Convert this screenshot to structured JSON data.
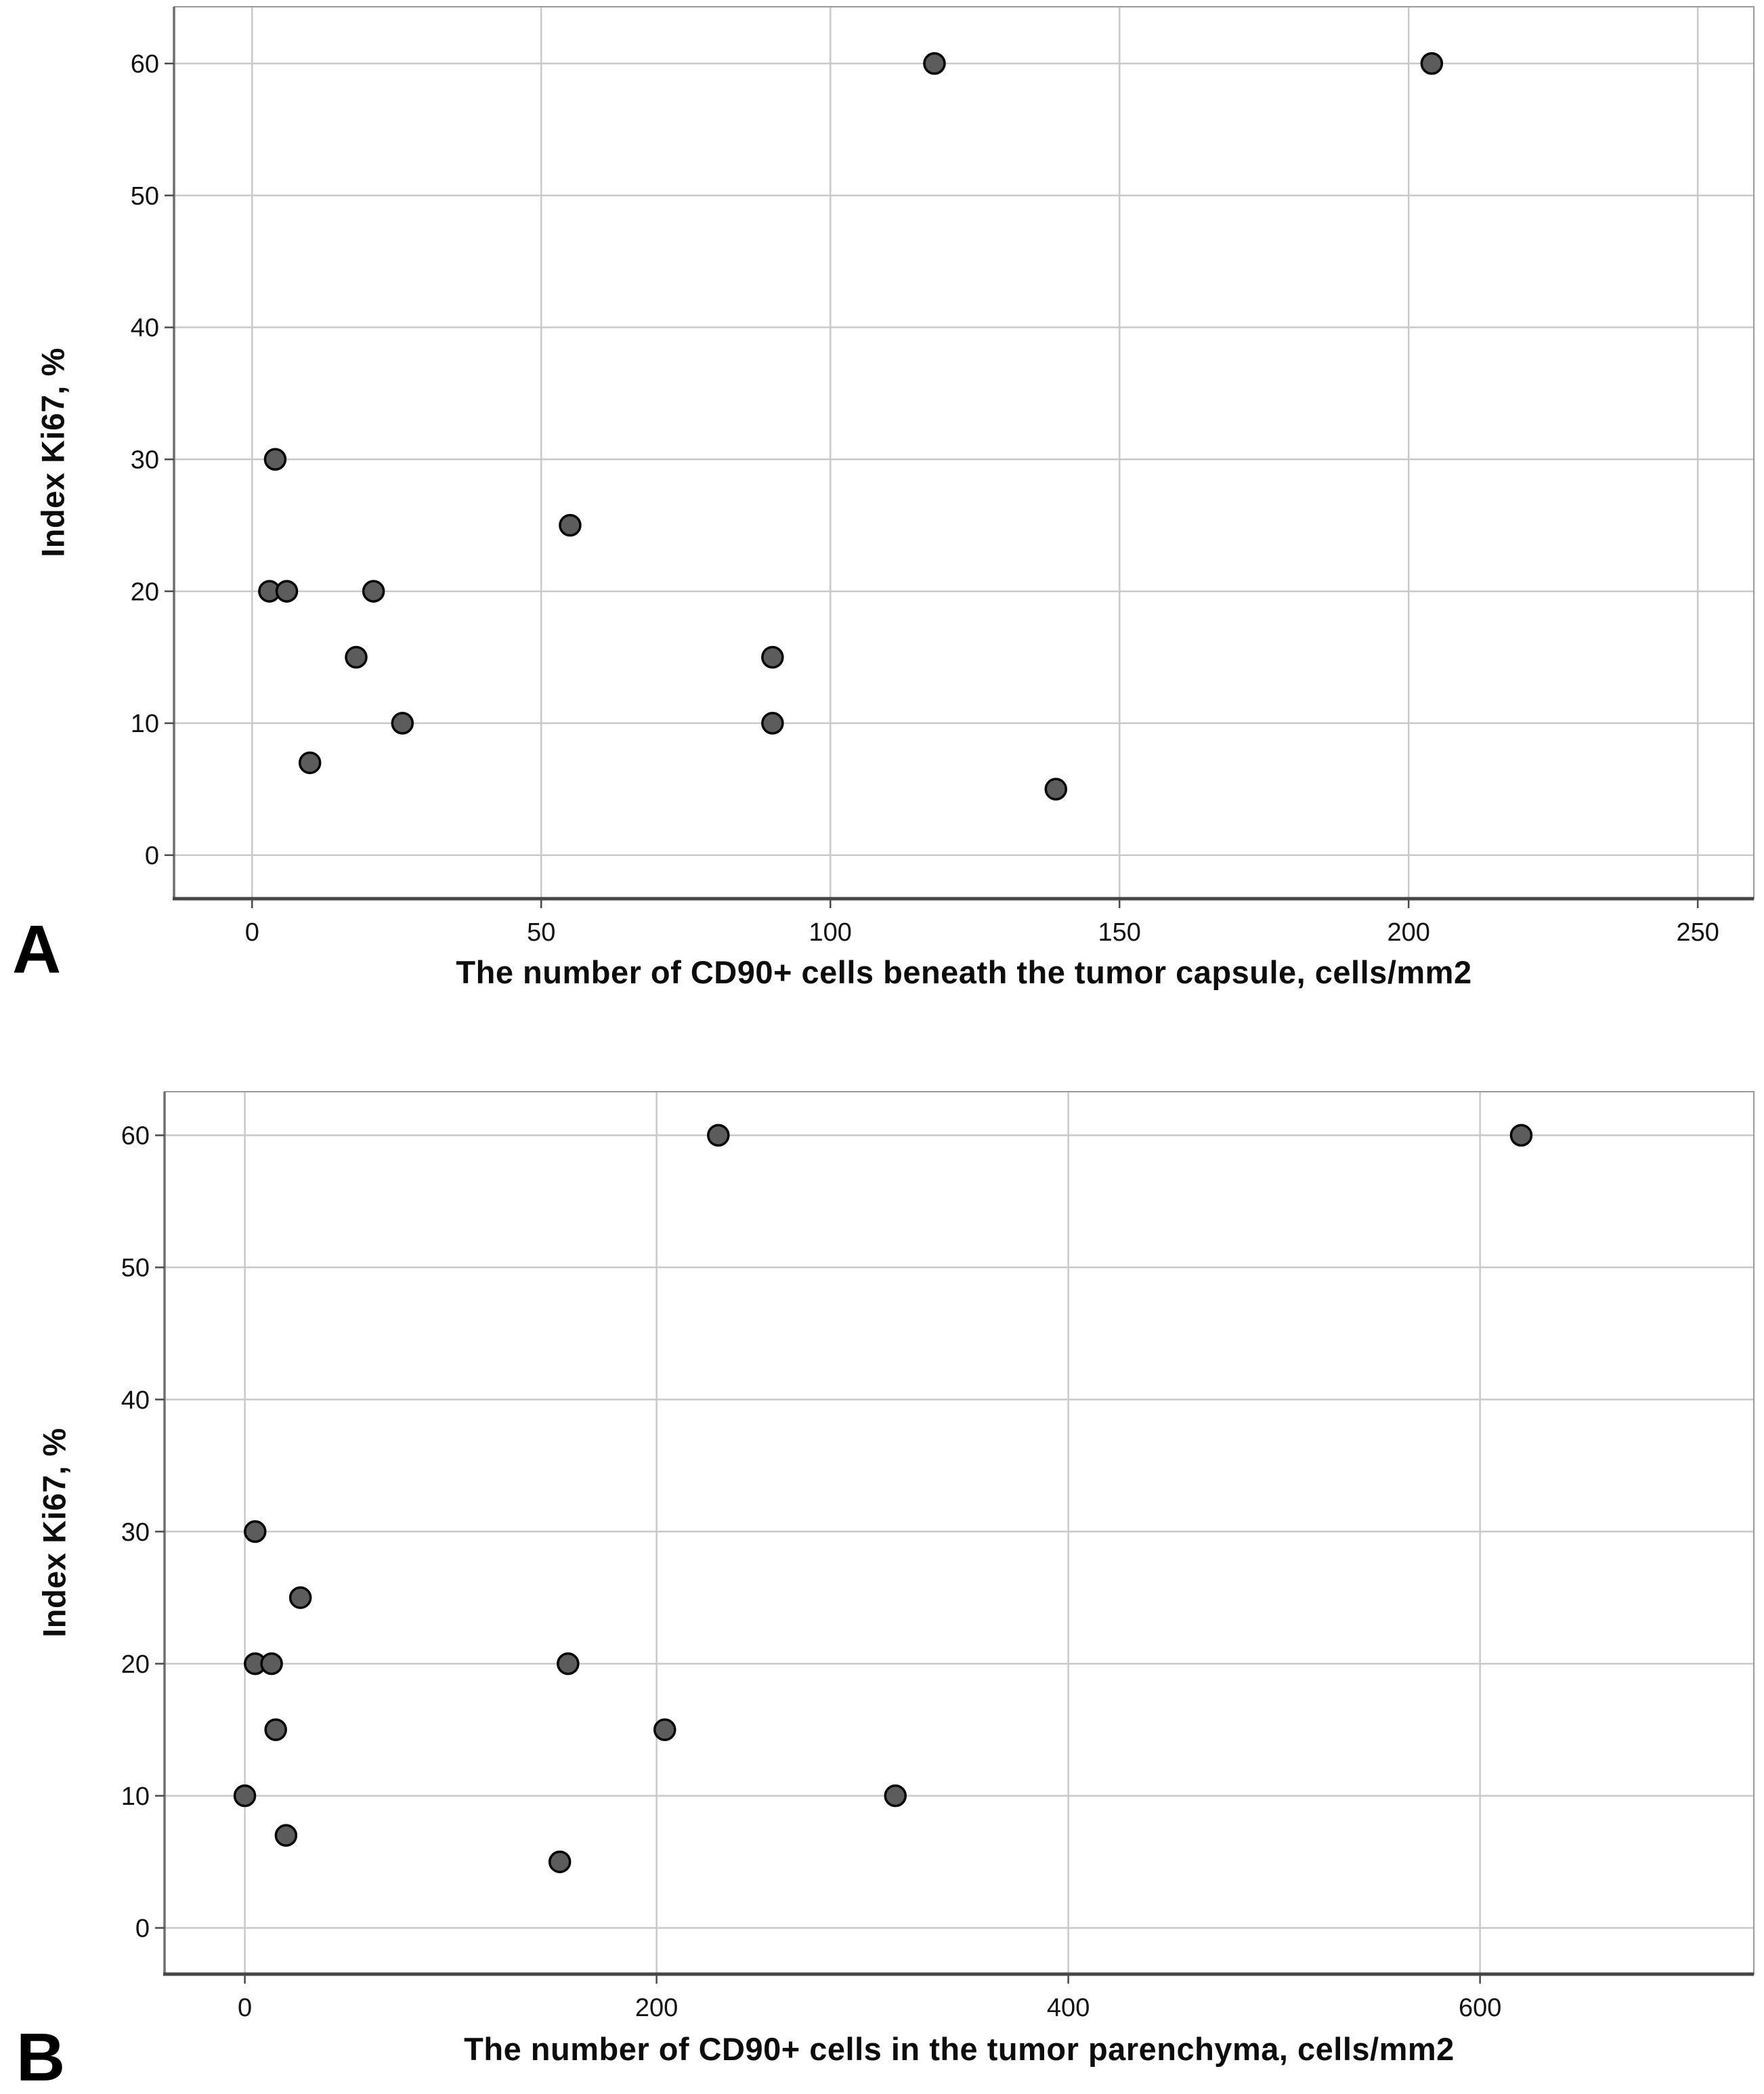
{
  "style": {
    "background": "#ffffff",
    "point_fill": "#5c5c5c",
    "point_stroke": "#000000",
    "grid_color": "#c9c9c9",
    "frame_color": "#9a9a9a",
    "left_axis_color": "#6f6f6f",
    "bottom_axis_color": "#454545",
    "tick_color": "#4a4a4a",
    "text_color": "#111111"
  },
  "chart_data": [
    {
      "type": "scatter",
      "panel_label": "A",
      "title": "",
      "xlabel": "The number of CD90+ cells beneath the tumor capsule, cells/mm2",
      "ylabel": "Index Ki67, %",
      "xlim": [
        -13.5,
        259.7
      ],
      "ylim": [
        -3.3,
        64.3
      ],
      "xticks": [
        0,
        50,
        100,
        150,
        200,
        250
      ],
      "yticks": [
        0,
        10,
        20,
        30,
        40,
        50,
        60
      ],
      "grid": true,
      "legend": "none",
      "points": [
        [
          3,
          20
        ],
        [
          4,
          30
        ],
        [
          6,
          20
        ],
        [
          10,
          7
        ],
        [
          18,
          15
        ],
        [
          21,
          20
        ],
        [
          26,
          10
        ],
        [
          55,
          25
        ],
        [
          90,
          15
        ],
        [
          90,
          10
        ],
        [
          118,
          60
        ],
        [
          139,
          5
        ],
        [
          204,
          60
        ]
      ]
    },
    {
      "type": "scatter",
      "panel_label": "B",
      "title": "",
      "xlabel": "The number of CD90+ cells in the tumor parenchyma, cells/mm2",
      "ylabel": "Index Ki67, %",
      "xlim": [
        -39,
        733
      ],
      "ylim": [
        -3.5,
        63.3
      ],
      "xticks": [
        0,
        200,
        400,
        600
      ],
      "yticks": [
        0,
        10,
        20,
        30,
        40,
        50,
        60
      ],
      "grid": true,
      "legend": "none",
      "points": [
        [
          0,
          10
        ],
        [
          5,
          20
        ],
        [
          5,
          30
        ],
        [
          13,
          20
        ],
        [
          15,
          15
        ],
        [
          20,
          7
        ],
        [
          27,
          25
        ],
        [
          153,
          5
        ],
        [
          157,
          20
        ],
        [
          204,
          15
        ],
        [
          230,
          60
        ],
        [
          316,
          10
        ],
        [
          620,
          60
        ]
      ]
    }
  ]
}
